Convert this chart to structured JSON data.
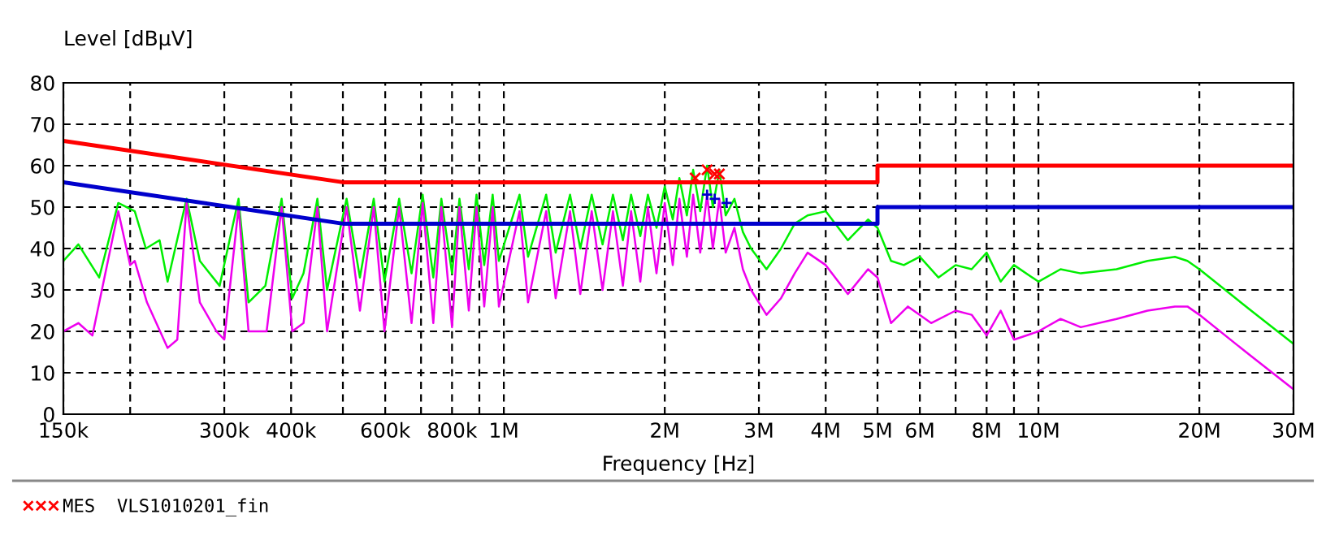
{
  "chart_data": {
    "type": "line",
    "xlabel": "Frequency [Hz]",
    "ylabel": "Level [dBµV]",
    "log": "x",
    "grid": true,
    "legend": "bottom left",
    "xlim": [
      150000,
      30000000
    ],
    "ylim": [
      0,
      80
    ],
    "xticks": [
      {
        "value": 150000,
        "label": "150k"
      },
      {
        "value": 200000,
        "label": null
      },
      {
        "value": 300000,
        "label": "300k"
      },
      {
        "value": 400000,
        "label": "400k"
      },
      {
        "value": 500000,
        "label": null
      },
      {
        "value": 600000,
        "label": "600k"
      },
      {
        "value": 700000,
        "label": null
      },
      {
        "value": 800000,
        "label": "800k"
      },
      {
        "value": 900000,
        "label": null
      },
      {
        "value": 1000000,
        "label": "1M"
      },
      {
        "value": 2000000,
        "label": "2M"
      },
      {
        "value": 3000000,
        "label": "3M"
      },
      {
        "value": 4000000,
        "label": "4M"
      },
      {
        "value": 5000000,
        "label": "5M"
      },
      {
        "value": 6000000,
        "label": "6M"
      },
      {
        "value": 7000000,
        "label": null
      },
      {
        "value": 8000000,
        "label": "8M"
      },
      {
        "value": 9000000,
        "label": null
      },
      {
        "value": 10000000,
        "label": "10M"
      },
      {
        "value": 20000000,
        "label": "20M"
      },
      {
        "value": 30000000,
        "label": "30M"
      }
    ],
    "yticks": [
      0,
      10,
      20,
      30,
      40,
      50,
      60,
      70,
      80
    ],
    "series": [
      {
        "color": "#00ee00",
        "x": [
          150000,
          160000,
          175000,
          190000,
          204000,
          214000,
          227000,
          235000,
          255000,
          270000,
          294000,
          319000,
          333000,
          358000,
          384000,
          402000,
          422000,
          448000,
          467000,
          508000,
          538000,
          571000,
          598000,
          637000,
          672000,
          705000,
          738000,
          764000,
          800000,
          826000,
          860000,
          889000,
          919000,
          953000,
          979000,
          1070000,
          1110000,
          1200000,
          1250000,
          1330000,
          1390000,
          1460000,
          1530000,
          1600000,
          1670000,
          1730000,
          1800000,
          1860000,
          1930000,
          2000000,
          2070000,
          2130000,
          2200000,
          2260000,
          2330000,
          2400000,
          2460000,
          2530000,
          2600000,
          2700000,
          2800000,
          2900000,
          3100000,
          3300000,
          3500000,
          3700000,
          4000000,
          4400000,
          4800000,
          5000000,
          5300000,
          5600000,
          6000000,
          6500000,
          7000000,
          7500000,
          8000000,
          8500000,
          9000000,
          10000000,
          11000000,
          12000000,
          14000000,
          16000000,
          18000000,
          19000000,
          20000000,
          25000000,
          30000000
        ],
        "values": [
          37,
          41,
          33,
          51,
          49,
          40,
          42,
          32,
          52,
          37,
          31,
          52,
          27,
          31,
          52,
          28,
          34,
          52,
          30,
          52,
          33,
          52,
          32,
          52,
          34,
          53,
          33,
          52,
          34,
          52,
          35,
          53,
          36,
          53,
          37,
          53,
          38,
          53,
          39,
          53,
          40,
          53,
          41,
          53,
          42,
          53,
          43,
          53,
          45,
          55,
          47,
          57,
          48,
          59,
          49,
          60,
          50,
          59,
          48,
          52,
          44,
          40,
          35,
          40,
          46,
          48,
          49,
          42,
          47,
          45,
          37,
          36,
          38,
          33,
          36,
          35,
          39,
          32,
          36,
          32,
          35,
          34,
          35,
          37,
          38,
          37,
          35,
          25,
          17
        ]
      },
      {
        "color": "#ee00ee",
        "x": [
          150000,
          160000,
          170000,
          190000,
          200000,
          204000,
          215000,
          235000,
          245000,
          255000,
          270000,
          290000,
          300000,
          319000,
          333000,
          360000,
          384000,
          402000,
          422000,
          448000,
          467000,
          508000,
          538000,
          571000,
          598000,
          637000,
          672000,
          705000,
          738000,
          764000,
          800000,
          826000,
          860000,
          889000,
          919000,
          953000,
          979000,
          1070000,
          1110000,
          1200000,
          1250000,
          1330000,
          1390000,
          1460000,
          1530000,
          1600000,
          1670000,
          1730000,
          1800000,
          1860000,
          1930000,
          2000000,
          2070000,
          2130000,
          2200000,
          2260000,
          2330000,
          2400000,
          2460000,
          2530000,
          2600000,
          2700000,
          2800000,
          2900000,
          3100000,
          3300000,
          3500000,
          3700000,
          4000000,
          4400000,
          4800000,
          5000000,
          5300000,
          5700000,
          6300000,
          7000000,
          7500000,
          8000000,
          8500000,
          9000000,
          10000000,
          11000000,
          12000000,
          14000000,
          16000000,
          18000000,
          19000000,
          20000000,
          25000000,
          30000000
        ],
        "values": [
          20,
          22,
          19,
          49,
          36,
          37,
          27,
          16,
          18,
          51,
          27,
          20,
          18,
          50,
          20,
          20,
          50,
          20,
          22,
          50,
          20,
          50,
          25,
          50,
          20,
          50,
          22,
          51,
          22,
          50,
          21,
          50,
          25,
          50,
          26,
          50,
          26,
          49,
          27,
          49,
          28,
          49,
          29,
          49,
          30,
          49,
          31,
          49,
          32,
          50,
          34,
          51,
          36,
          52,
          38,
          53,
          39,
          53,
          40,
          52,
          39,
          45,
          35,
          30,
          24,
          28,
          34,
          39,
          36,
          29,
          35,
          33,
          22,
          26,
          22,
          25,
          24,
          19,
          25,
          18,
          20,
          23,
          21,
          23,
          25,
          26,
          26,
          24,
          14,
          6
        ]
      },
      {
        "color": "#ff0000",
        "x": [
          150000,
          500000,
          5000000,
          5000000,
          30000000
        ],
        "values": [
          66,
          56,
          56,
          60,
          60
        ]
      },
      {
        "color": "#0000cc",
        "x": [
          150000,
          500000,
          5000000,
          5000000,
          30000000
        ],
        "values": [
          56,
          46,
          46,
          50,
          50
        ]
      },
      {
        "type": "scatter",
        "marker": "cross",
        "name": "MES  VLS1010201_fin",
        "color": "#ff0000",
        "x": [
          2280000,
          2400000,
          2480000,
          2530000
        ],
        "values": [
          57,
          59,
          58,
          58
        ]
      },
      {
        "type": "scatter",
        "marker": "plus",
        "color": "#0000cc",
        "x": [
          2400000,
          2480000,
          2610000
        ],
        "values": [
          53,
          52,
          51
        ]
      }
    ]
  }
}
